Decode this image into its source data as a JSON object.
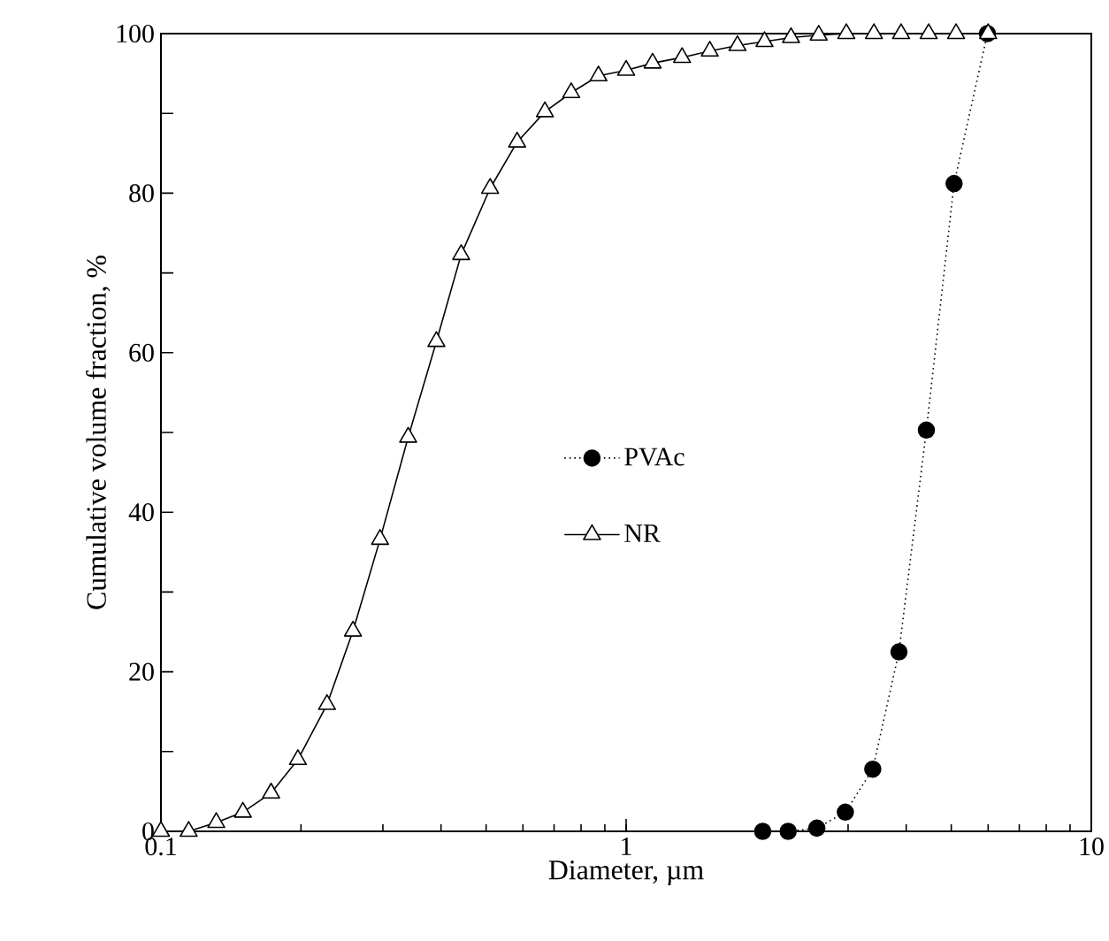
{
  "chart_data": {
    "type": "line",
    "xlabel": "Diameter, µm",
    "ylabel": "Cumulative volume fraction, %",
    "log": "x",
    "xlim": [
      0.1,
      10
    ],
    "xticks": [
      0.1,
      1,
      10
    ],
    "ylim": [
      0,
      100
    ],
    "yticks": [
      0,
      {
        "value": 10,
        "label": null
      },
      20,
      {
        "value": 30,
        "label": null
      },
      40,
      {
        "value": 50,
        "label": null
      },
      60,
      {
        "value": 70,
        "label": null
      },
      80,
      {
        "value": 90,
        "label": null
      },
      100
    ],
    "grid": false,
    "legend": "center",
    "series": [
      {
        "name": "PVAc",
        "color": "#000000",
        "marker": "circle",
        "line_style": "dotted",
        "x": [
          1.966,
          2.23,
          2.57,
          2.96,
          3.39,
          3.86,
          4.42,
          5.07,
          5.98
        ],
        "values": [
          0,
          0,
          0.4,
          2.4,
          7.8,
          22.5,
          50.3,
          81.2,
          100
        ]
      },
      {
        "name": "NR",
        "color": "#000000",
        "marker": "triangle",
        "line_style": "solid",
        "x": [
          0.1,
          0.1147,
          0.1315,
          0.15,
          0.1725,
          0.197,
          0.2275,
          0.2587,
          0.2958,
          0.34,
          0.391,
          0.442,
          0.51,
          0.583,
          0.669,
          0.762,
          0.872,
          1.0,
          1.14,
          1.319,
          1.513,
          1.735,
          1.984,
          2.262,
          2.594,
          2.974,
          3.41,
          3.9,
          4.47,
          5.12,
          6.0
        ],
        "values": [
          0,
          0,
          1.1,
          2.4,
          4.8,
          9.0,
          15.9,
          25.1,
          36.6,
          49.4,
          61.4,
          72.3,
          80.6,
          86.4,
          90.2,
          92.6,
          94.7,
          95.4,
          96.3,
          97.0,
          97.8,
          98.5,
          99.0,
          99.5,
          99.8,
          100,
          100,
          100,
          100,
          100,
          100
        ]
      }
    ]
  }
}
